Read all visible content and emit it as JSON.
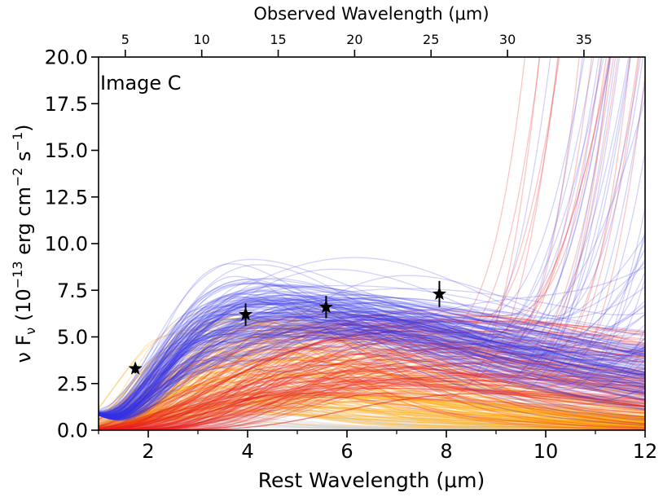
{
  "chart_data": {
    "type": "line",
    "annotation": "Image C",
    "xlabel": "Rest Wavelength (μm)",
    "x2label": "Observed Wavelength (μm)",
    "ylabel_main": "ν F",
    "ylabel_sub": "ν",
    "ylabel_unit_open": " (10",
    "ylabel_exp1": "−13",
    "ylabel_unit_mid": " erg cm",
    "ylabel_exp2": "−2",
    "ylabel_unit_s": " s",
    "ylabel_exp3": "−1",
    "ylabel_close": ")",
    "xlim": [
      1,
      12
    ],
    "ylim": [
      0,
      20
    ],
    "x_ticks": [
      2,
      4,
      6,
      8,
      10,
      12
    ],
    "x_tick_labels": [
      "2",
      "4",
      "6",
      "8",
      "10",
      "12"
    ],
    "y_ticks": [
      0,
      2.5,
      5,
      7.5,
      10,
      12.5,
      15,
      17.5,
      20
    ],
    "y_tick_labels": [
      "0.0",
      "2.5",
      "5.0",
      "7.5",
      "10.0",
      "12.5",
      "15.0",
      "17.5",
      "20.0"
    ],
    "x2_ticks_observed": [
      5,
      10,
      15,
      20,
      25,
      30,
      35
    ],
    "x2_tick_labels": [
      "5",
      "10",
      "15",
      "20",
      "25",
      "30",
      "35"
    ],
    "redshift_factor": 3.25,
    "colors": {
      "blue_models": "#3232e6",
      "red_models": "#e61e1e",
      "orange_models": "#ffa500",
      "gray_models": "#b4b4b4",
      "data_points": "#000000"
    },
    "data_points": [
      {
        "x": 1.74,
        "y": 3.3,
        "yerr": 0.25
      },
      {
        "x": 3.96,
        "y": 6.2,
        "yerr": 0.6
      },
      {
        "x": 5.58,
        "y": 6.6,
        "yerr": 0.6
      },
      {
        "x": 7.86,
        "y": 7.3,
        "yerr": 0.7
      }
    ]
  }
}
